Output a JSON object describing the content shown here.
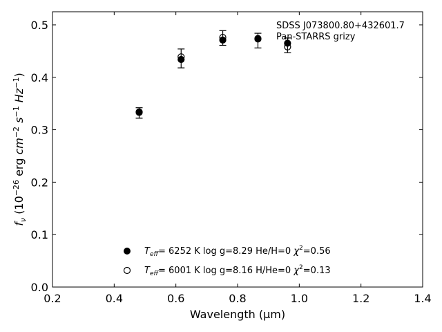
{
  "chart_data": {
    "type": "scatter",
    "xlabel": "Wavelength (μm)",
    "ylabel": "f_ν (10^-26 erg cm^-2 s^-1 Hz^-1)",
    "xlim": [
      0.2,
      1.4
    ],
    "ylim": [
      0.0,
      0.525
    ],
    "xticks": [
      "0.2",
      "0.4",
      "0.6",
      "0.8",
      "1.0",
      "1.2",
      "1.4"
    ],
    "yticks": [
      "0.0",
      "0.1",
      "0.2",
      "0.3",
      "0.4",
      "0.5"
    ],
    "grid": false,
    "annotation": [
      "SDSS J073800.80+432601.7",
      "Pan-STARRS grizy"
    ],
    "observed": {
      "x": [
        0.481,
        0.617,
        0.752,
        0.866,
        0.962
      ],
      "y": [
        0.332,
        0.436,
        0.475,
        0.47,
        0.461
      ],
      "yerr": [
        0.01,
        0.018,
        0.014,
        0.014,
        0.014
      ]
    },
    "series": [
      {
        "marker": "filled-circle",
        "legend": {
          "teff": "6252 K",
          "logg": "log g=8.29",
          "comp": "He/H=0",
          "chi2": "=0.56"
        },
        "x": [
          0.481,
          0.617,
          0.752,
          0.866,
          0.962
        ],
        "y": [
          0.334,
          0.434,
          0.471,
          0.473,
          0.465
        ]
      },
      {
        "marker": "open-circle",
        "legend": {
          "teff": "6001 K",
          "logg": "log g=8.16",
          "comp": "H/He=0",
          "chi2": "=0.13"
        },
        "x": [
          0.481,
          0.617,
          0.752,
          0.866,
          0.962
        ],
        "y": [
          0.333,
          0.439,
          0.476,
          0.474,
          0.458
        ]
      }
    ],
    "legend_position": "bottom-center"
  }
}
